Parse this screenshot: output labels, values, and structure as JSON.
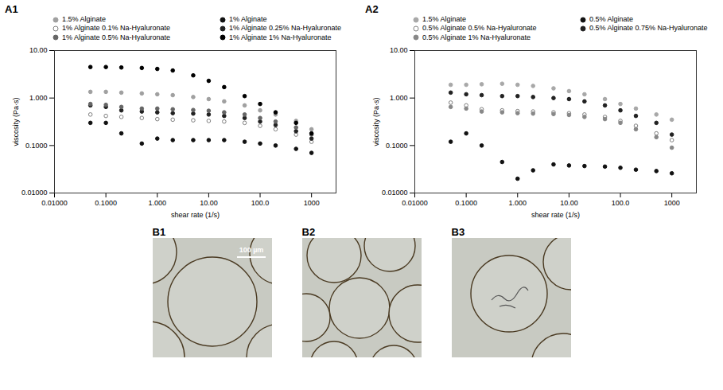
{
  "chart_data": [
    {
      "type": "scatter",
      "panel": "A1",
      "log": true,
      "grid": false,
      "legend": "top",
      "x_label": "shear rate (1/s)",
      "y_label": "viscosity (Pa·s)",
      "xlim": [
        0.01,
        3000
      ],
      "ylim": [
        0.01,
        10
      ],
      "xticks": [
        {
          "value": 0.01,
          "label": "0.01000"
        },
        {
          "value": 0.1,
          "label": "0.1000"
        },
        {
          "value": 1,
          "label": "1.000"
        },
        {
          "value": 10,
          "label": "10.00"
        },
        {
          "value": 100,
          "label": "100.0"
        },
        1000
      ],
      "yticks": [
        {
          "value": 0.01,
          "label": "0.01000"
        },
        {
          "value": 0.1,
          "label": "0.1000"
        },
        {
          "value": 1,
          "label": "1.000"
        },
        {
          "value": 10,
          "label": "10.00"
        }
      ],
      "x": [
        0.05,
        0.1,
        0.2,
        0.5,
        1,
        2,
        5,
        10,
        20,
        50,
        100,
        200,
        500,
        1000
      ],
      "series": [
        {
          "name": "1.5% Alginate",
          "color": "#a0a0a0",
          "marker": "circle",
          "values": [
            1.35,
            1.35,
            1.3,
            1.25,
            1.2,
            1.15,
            1.05,
            0.95,
            0.85,
            0.7,
            0.55,
            0.45,
            0.33,
            0.22
          ]
        },
        {
          "name": "1% Alginate",
          "color": "#111111",
          "marker": "circle",
          "values": [
            0.3,
            0.3,
            0.18,
            0.11,
            0.14,
            0.13,
            0.13,
            0.13,
            0.13,
            0.12,
            0.11,
            0.1,
            0.085,
            0.07
          ]
        },
        {
          "name": "1% Alginate 0.1% Na-Hyaluronate",
          "color": "#808080",
          "marker": "open-circle",
          "values": [
            0.45,
            0.42,
            0.4,
            0.38,
            0.36,
            0.35,
            0.34,
            0.33,
            0.32,
            0.3,
            0.26,
            0.22,
            0.17,
            0.12
          ]
        },
        {
          "name": "1% Alginate 0.25% Na-Hyaluronate",
          "color": "#222222",
          "marker": "circle",
          "values": [
            0.7,
            0.65,
            0.55,
            0.52,
            0.5,
            0.48,
            0.47,
            0.45,
            0.42,
            0.38,
            0.32,
            0.27,
            0.2,
            0.14
          ]
        },
        {
          "name": "1% Alginate 0.5% Na-Hyaluronate",
          "color": "#666666",
          "marker": "circle",
          "values": [
            0.75,
            0.72,
            0.65,
            0.6,
            0.6,
            0.58,
            0.56,
            0.54,
            0.5,
            0.45,
            0.38,
            0.32,
            0.24,
            0.17
          ]
        },
        {
          "name": "1% Alginate 1% Na-Hyaluronate",
          "color": "#000000",
          "marker": "circle",
          "values": [
            4.5,
            4.5,
            4.4,
            4.3,
            4.1,
            3.8,
            3.0,
            2.3,
            1.7,
            1.1,
            0.75,
            0.5,
            0.3,
            0.18
          ]
        }
      ]
    },
    {
      "type": "scatter",
      "panel": "A2",
      "log": true,
      "grid": false,
      "legend": "top",
      "x_label": "shear rate (1/s)",
      "y_label": "viscosity (Pa·s)",
      "xlim": [
        0.01,
        3000
      ],
      "ylim": [
        0.01,
        10
      ],
      "xticks": [
        {
          "value": 0.01,
          "label": "0.01000"
        },
        {
          "value": 0.1,
          "label": "0.1000"
        },
        {
          "value": 1,
          "label": "1.000"
        },
        {
          "value": 10,
          "label": "10.00"
        },
        {
          "value": 100,
          "label": "100.0"
        },
        1000
      ],
      "yticks": [
        {
          "value": 0.01,
          "label": "0.01000"
        },
        {
          "value": 0.1,
          "label": "0.1000"
        },
        {
          "value": 1,
          "label": "1.000"
        },
        {
          "value": 10,
          "label": "10.00"
        }
      ],
      "x": [
        0.05,
        0.1,
        0.2,
        0.5,
        1,
        2,
        5,
        10,
        20,
        50,
        100,
        200,
        500,
        1000
      ],
      "series": [
        {
          "name": "1.5% Alginate",
          "color": "#a8a8a8",
          "marker": "circle",
          "values": [
            1.9,
            1.9,
            1.95,
            2.0,
            1.9,
            1.8,
            1.6,
            1.4,
            1.2,
            0.95,
            0.75,
            0.6,
            0.45,
            0.35
          ]
        },
        {
          "name": "0.5% Alginate",
          "color": "#111111",
          "marker": "circle",
          "values": [
            0.12,
            0.18,
            0.1,
            0.045,
            0.02,
            0.03,
            0.04,
            0.038,
            0.037,
            0.036,
            0.034,
            0.031,
            0.029,
            0.026
          ]
        },
        {
          "name": "0.5% Alginate 0.5% Na-Hyaluronate",
          "color": "#808080",
          "marker": "open-circle",
          "values": [
            0.8,
            0.7,
            0.58,
            0.55,
            0.53,
            0.52,
            0.5,
            0.48,
            0.45,
            0.4,
            0.33,
            0.26,
            0.18,
            0.13
          ]
        },
        {
          "name": "0.5% Alginate 0.75% Na-Hyaluronate",
          "color": "#222222",
          "marker": "circle",
          "values": [
            1.3,
            1.2,
            1.15,
            1.1,
            1.1,
            1.05,
            1.0,
            0.95,
            0.85,
            0.7,
            0.55,
            0.42,
            0.3,
            0.17
          ]
        },
        {
          "name": "0.5% Alginate 1% Na-Hyaluronate",
          "color": "#888888",
          "marker": "circle",
          "values": [
            0.65,
            0.6,
            0.52,
            0.5,
            0.48,
            0.47,
            0.46,
            0.44,
            0.4,
            0.36,
            0.3,
            0.22,
            0.15,
            0.09
          ]
        }
      ]
    }
  ],
  "micrographs": [
    {
      "panel": "B1",
      "scale_bar": "100 µm"
    },
    {
      "panel": "B2"
    },
    {
      "panel": "B3"
    }
  ]
}
